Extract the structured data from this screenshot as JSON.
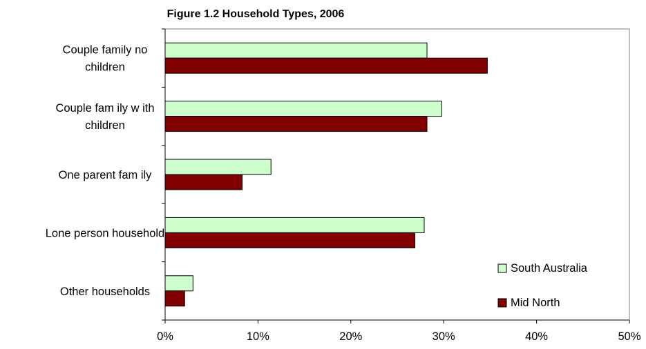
{
  "chart_data": {
    "type": "bar",
    "orientation": "horizontal",
    "title": "Figure 1.2  Household Types, 2006",
    "xlabel": "",
    "ylabel": "",
    "xlim": [
      0,
      50
    ],
    "x_ticks": [
      "0%",
      "10%",
      "20%",
      "30%",
      "40%",
      "50%"
    ],
    "categories": [
      [
        "Couple family no",
        "children"
      ],
      [
        "Couple fam ily w ith",
        "children"
      ],
      [
        "One parent fam ily"
      ],
      [
        "Lone person household"
      ],
      [
        "Other households"
      ]
    ],
    "series": [
      {
        "name": "South Australia",
        "color": "#ccffcc",
        "values": [
          28.2,
          29.8,
          11.4,
          27.9,
          3.0
        ]
      },
      {
        "name": "Mid North",
        "color": "#800000",
        "values": [
          34.7,
          28.2,
          8.3,
          26.9,
          2.1
        ]
      }
    ],
    "grid": false,
    "legend_position": "bottom-right"
  }
}
